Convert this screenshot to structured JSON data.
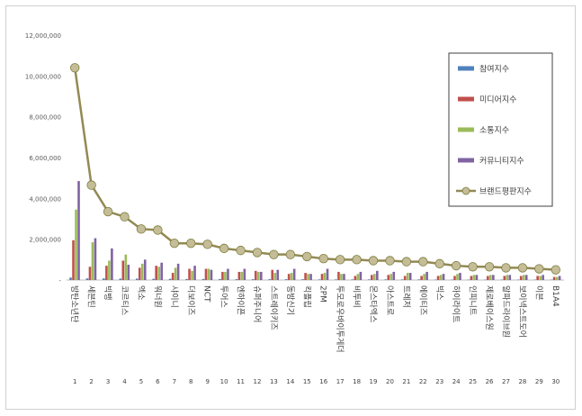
{
  "chart_data": {
    "type": "bar",
    "y_ticks": [
      "12,000,000",
      "10,000,000",
      "8,000,000",
      "6,000,000",
      "4,000,000",
      "2,000,000",
      "-"
    ],
    "ylim": [
      0,
      12000000
    ],
    "grid": false,
    "legend_position": "top-right",
    "categories": [
      "방탄소년단",
      "세븐틴",
      "빅뱅",
      "코르티스",
      "엑소",
      "워너원",
      "샤이니",
      "더보이즈",
      "NCT",
      "투어스",
      "엔하이픈",
      "슈퍼주니어",
      "스트레이키즈",
      "동방신기",
      "킥플립",
      "2PM",
      "투모로우바이투게더",
      "비투비",
      "몬스타엑스",
      "아스트로",
      "트레저",
      "에이티즈",
      "빅스",
      "하이라이트",
      "인피니트",
      "제로베이스원",
      "알파드라이브원",
      "보이넥스트도어",
      "이븐",
      "B1A4"
    ],
    "ranks": [
      "1",
      "2",
      "3",
      "4",
      "5",
      "6",
      "7",
      "8",
      "9",
      "10",
      "11",
      "12",
      "13",
      "14",
      "15",
      "16",
      "17",
      "18",
      "19",
      "20",
      "21",
      "22",
      "23",
      "24",
      "25",
      "26",
      "27",
      "28",
      "29",
      "30"
    ],
    "series": [
      {
        "name": "참여지수",
        "color": "#4f81bd",
        "values": [
          120000,
          80000,
          80000,
          70000,
          70000,
          60000,
          60000,
          50000,
          50000,
          50000,
          40000,
          40000,
          40000,
          40000,
          40000,
          30000,
          30000,
          30000,
          30000,
          30000,
          30000,
          30000,
          20000,
          20000,
          20000,
          20000,
          20000,
          20000,
          20000,
          20000
        ]
      },
      {
        "name": "미디어지수",
        "color": "#c0504d",
        "values": [
          1950000,
          650000,
          700000,
          950000,
          600000,
          700000,
          350000,
          550000,
          550000,
          400000,
          400000,
          450000,
          500000,
          300000,
          350000,
          300000,
          400000,
          200000,
          250000,
          250000,
          200000,
          200000,
          200000,
          200000,
          200000,
          200000,
          200000,
          200000,
          200000,
          150000
        ]
      },
      {
        "name": "소통지수",
        "color": "#9bbb59",
        "values": [
          3450000,
          1850000,
          950000,
          1250000,
          800000,
          650000,
          600000,
          450000,
          550000,
          400000,
          400000,
          400000,
          350000,
          350000,
          300000,
          350000,
          300000,
          300000,
          300000,
          300000,
          350000,
          300000,
          250000,
          300000,
          250000,
          250000,
          250000,
          250000,
          200000,
          150000
        ]
      },
      {
        "name": "커뮤니티지수",
        "color": "#8064a2",
        "values": [
          4850000,
          2050000,
          1550000,
          750000,
          1000000,
          850000,
          800000,
          700000,
          500000,
          550000,
          550000,
          400000,
          500000,
          550000,
          300000,
          550000,
          300000,
          400000,
          450000,
          400000,
          350000,
          400000,
          300000,
          350000,
          250000,
          250000,
          250000,
          250000,
          250000,
          200000
        ]
      },
      {
        "name": "브랜드평판지수",
        "color": "#938953",
        "type": "line",
        "values": [
          10400000,
          4650000,
          3350000,
          3100000,
          2500000,
          2450000,
          1800000,
          1800000,
          1750000,
          1550000,
          1450000,
          1350000,
          1250000,
          1250000,
          1150000,
          1050000,
          1000000,
          1000000,
          950000,
          950000,
          900000,
          900000,
          800000,
          700000,
          650000,
          650000,
          600000,
          600000,
          550000,
          500000
        ]
      }
    ]
  }
}
